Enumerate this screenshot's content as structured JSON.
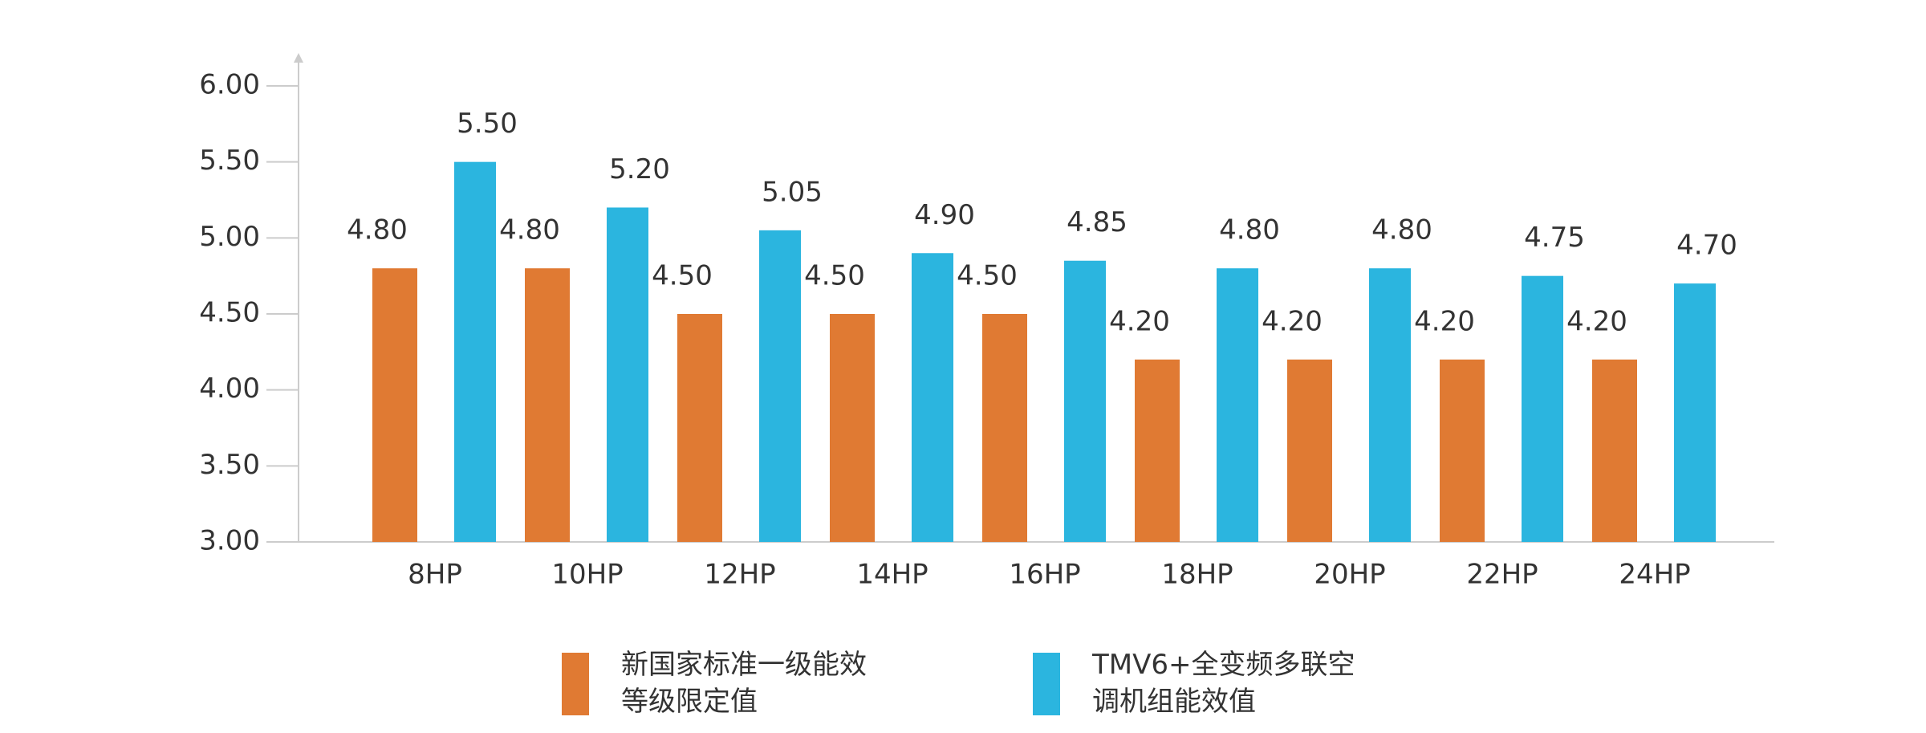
{
  "chart_data": {
    "type": "bar",
    "categories": [
      "8HP",
      "10HP",
      "12HP",
      "14HP",
      "16HP",
      "18HP",
      "20HP",
      "22HP",
      "24HP"
    ],
    "series": [
      {
        "name": "新国家标准一级能效等级限定值",
        "color": "#e07a33",
        "values": [
          4.8,
          4.8,
          4.5,
          4.5,
          4.5,
          4.2,
          4.2,
          4.2,
          4.2
        ],
        "value_labels": [
          "4.80",
          "4.80",
          "4.50",
          "4.50",
          "4.50",
          "4.20",
          "4.20",
          "4.20",
          "4.20"
        ]
      },
      {
        "name": "TMV6+全变频多联空调机组能效值",
        "color": "#2bb5df",
        "values": [
          5.5,
          5.2,
          5.05,
          4.9,
          4.85,
          4.8,
          4.8,
          4.75,
          4.7
        ],
        "value_labels": [
          "5.50",
          "5.20",
          "5.05",
          "4.90",
          "4.85",
          "4.80",
          "4.80",
          "4.75",
          "4.70"
        ]
      }
    ],
    "ylim": [
      3,
      6
    ],
    "yticks": [
      {
        "value": 3,
        "label": "3.00"
      },
      {
        "value": 3.5,
        "label": "3.50"
      },
      {
        "value": 4,
        "label": "4.00"
      },
      {
        "value": 4.5,
        "label": "4.50"
      },
      {
        "value": 5,
        "label": "5.00"
      },
      {
        "value": 5.5,
        "label": "5.50"
      },
      {
        "value": 6,
        "label": "6.00"
      }
    ]
  }
}
